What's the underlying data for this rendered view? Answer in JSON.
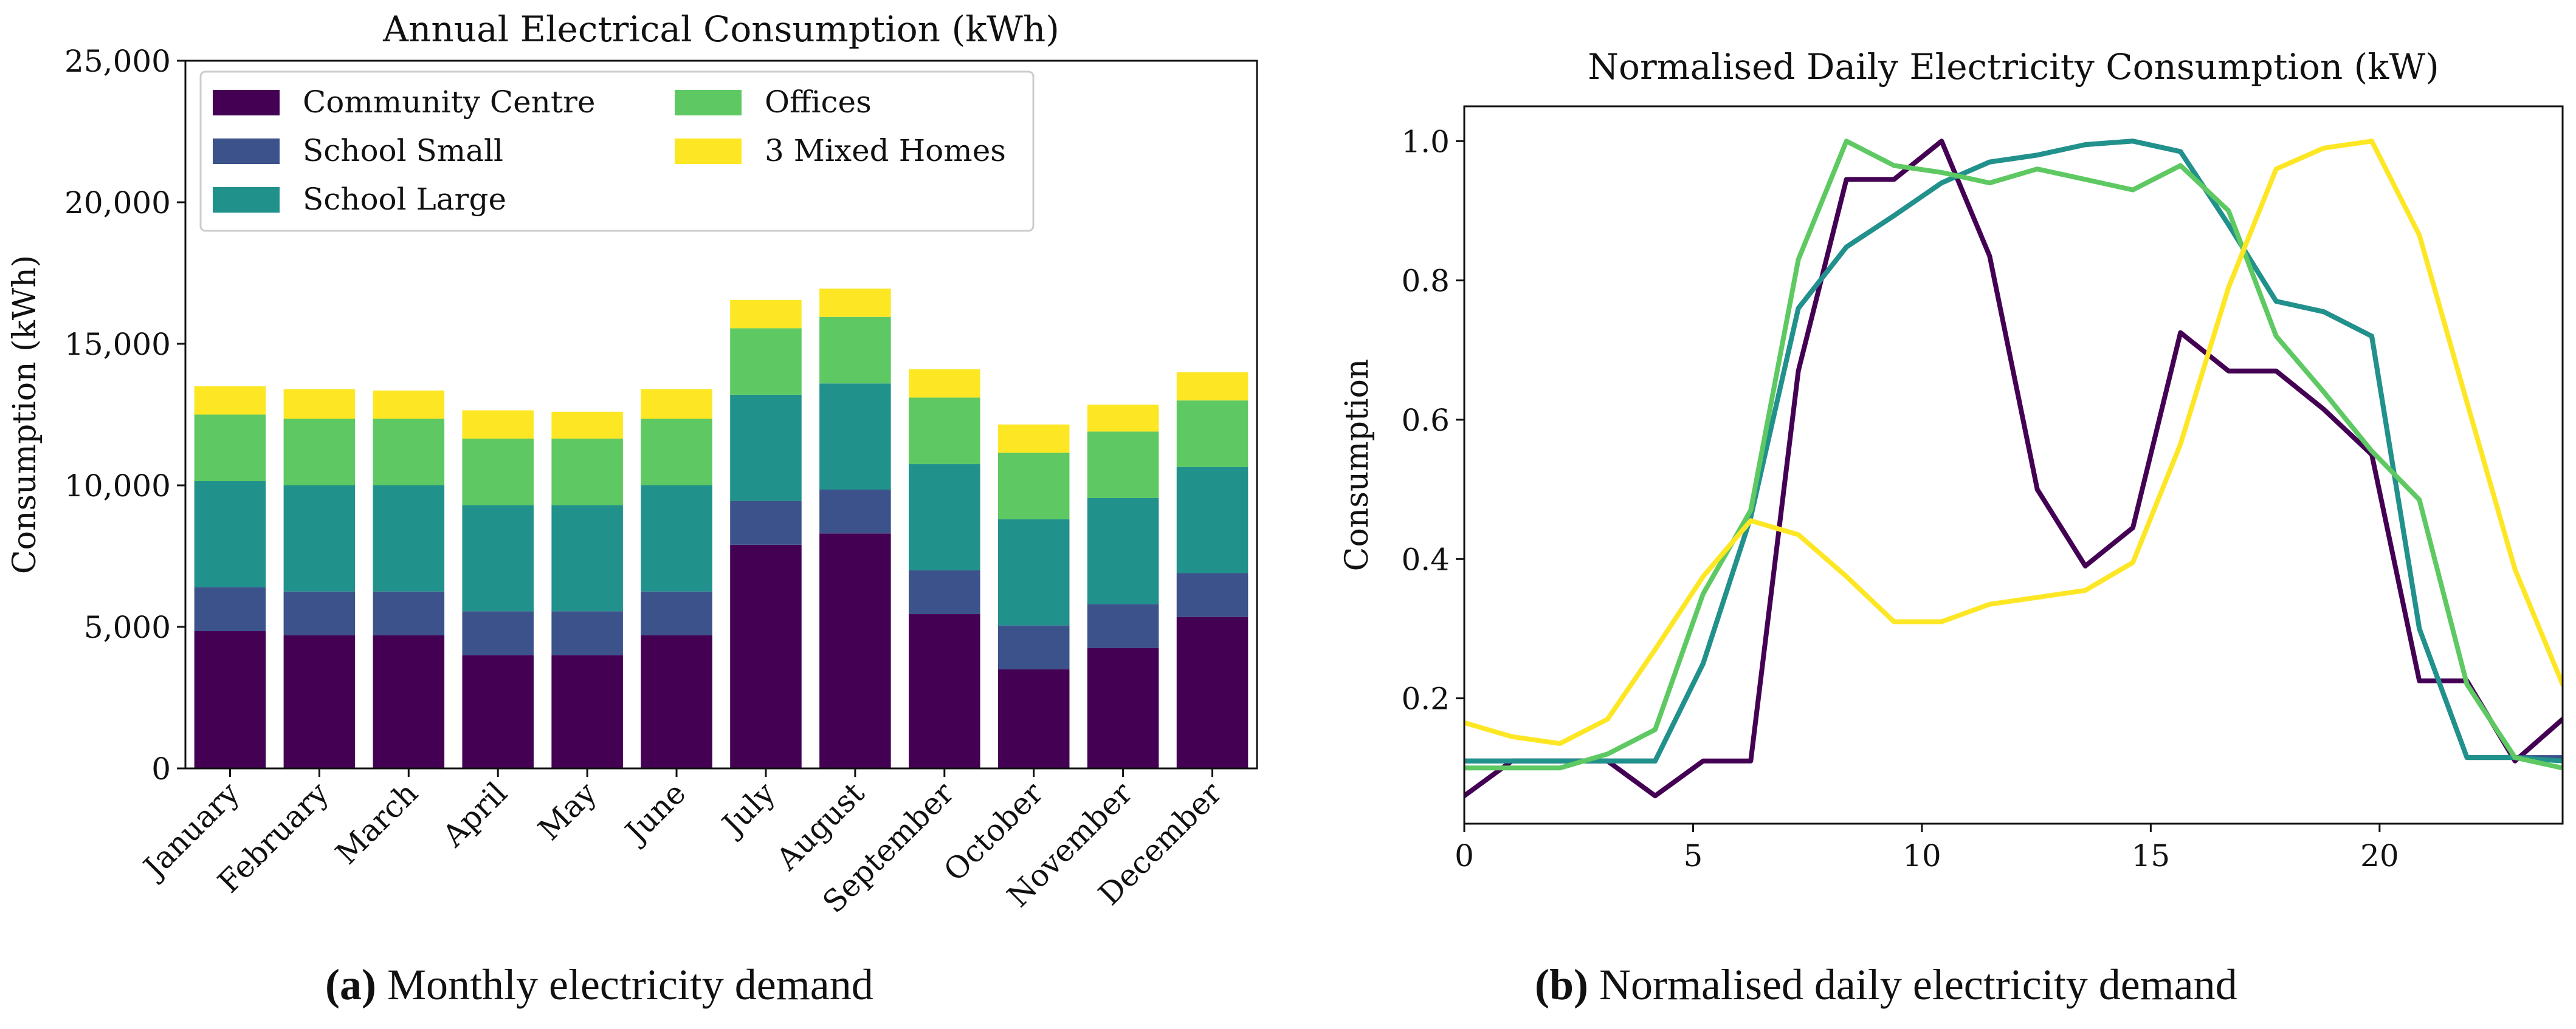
{
  "chart_data": [
    {
      "type": "bar",
      "stacked": true,
      "title": "Annual Electrical Consumption (kWh)",
      "xlabel": "",
      "ylabel": "Consumption (kWh)",
      "ylim": [
        0,
        25000
      ],
      "yticks": [
        0,
        5000,
        10000,
        15000,
        20000,
        25000
      ],
      "ytick_labels": [
        "0",
        "5,000",
        "10,000",
        "15,000",
        "20,000",
        "25,000"
      ],
      "legend_position": "top-left",
      "categories": [
        "January",
        "February",
        "March",
        "April",
        "May",
        "June",
        "July",
        "August",
        "September",
        "October",
        "November",
        "December"
      ],
      "series": [
        {
          "name": "Community Centre",
          "color": "#440154",
          "values": [
            4850,
            4700,
            4700,
            4000,
            4000,
            4700,
            7900,
            8300,
            5450,
            3500,
            4250,
            5350
          ]
        },
        {
          "name": "School Small",
          "color": "#3b528b",
          "values": [
            1550,
            1550,
            1550,
            1550,
            1550,
            1550,
            1550,
            1550,
            1550,
            1550,
            1550,
            1550
          ]
        },
        {
          "name": "School Large",
          "color": "#21918c",
          "values": [
            3750,
            3750,
            3750,
            3750,
            3750,
            3750,
            3750,
            3750,
            3750,
            3750,
            3750,
            3750
          ]
        },
        {
          "name": "Offices",
          "color": "#5ec962",
          "values": [
            2350,
            2350,
            2350,
            2350,
            2350,
            2350,
            2350,
            2350,
            2350,
            2350,
            2350,
            2350
          ]
        },
        {
          "name": "3 Mixed Homes",
          "color": "#fde725",
          "values": [
            1000,
            1050,
            1000,
            1000,
            950,
            1050,
            1000,
            1000,
            1000,
            1000,
            950,
            1000
          ]
        }
      ]
    },
    {
      "type": "line",
      "title": "Normalised Daily Electricity Consumption (kW)",
      "xlabel": "",
      "ylabel": "Consumption",
      "xlim": [
        0,
        24
      ],
      "ylim": [
        0.02,
        1.05
      ],
      "xticks": [
        0,
        5,
        10,
        15,
        20
      ],
      "yticks": [
        0.2,
        0.4,
        0.6,
        0.8,
        1.0
      ],
      "ytick_labels": [
        "0.2",
        "0.4",
        "0.6",
        "0.8",
        "1.0"
      ],
      "x": [
        0,
        1.04,
        2.09,
        3.13,
        4.17,
        5.22,
        6.26,
        7.3,
        8.35,
        9.39,
        10.43,
        11.48,
        12.52,
        13.57,
        14.61,
        15.65,
        16.7,
        17.74,
        18.78,
        19.83,
        20.87,
        21.91,
        22.96,
        24
      ],
      "series": [
        {
          "name": "Community Centre",
          "color": "#440154",
          "values": [
            0.06,
            0.11,
            0.11,
            0.11,
            0.06,
            0.11,
            0.11,
            0.67,
            0.945,
            0.945,
            1.0,
            0.835,
            0.5,
            0.39,
            0.445,
            0.725,
            0.67,
            0.67,
            0.615,
            0.55,
            0.225,
            0.225,
            0.11,
            0.17
          ]
        },
        {
          "name": "School Small",
          "color": "#3b528b",
          "values": [
            0.11,
            0.11,
            0.11,
            0.11,
            0.11,
            0.25,
            0.46,
            0.76,
            0.848,
            0.893,
            0.94,
            0.97,
            0.98,
            0.995,
            1.0,
            0.985,
            0.88,
            0.77,
            0.755,
            0.72,
            0.3,
            0.115,
            0.115,
            0.115
          ]
        },
        {
          "name": "School Large",
          "color": "#21918c",
          "values": [
            0.11,
            0.11,
            0.11,
            0.11,
            0.11,
            0.25,
            0.46,
            0.76,
            0.848,
            0.893,
            0.94,
            0.97,
            0.98,
            0.995,
            1.0,
            0.985,
            0.88,
            0.77,
            0.755,
            0.72,
            0.3,
            0.115,
            0.115,
            0.11
          ]
        },
        {
          "name": "Offices",
          "color": "#5ec962",
          "values": [
            0.1,
            0.1,
            0.1,
            0.12,
            0.155,
            0.35,
            0.47,
            0.83,
            1.0,
            0.965,
            0.955,
            0.94,
            0.96,
            0.945,
            0.93,
            0.965,
            0.9,
            0.72,
            0.64,
            0.555,
            0.485,
            0.22,
            0.115,
            0.1
          ]
        },
        {
          "name": "3 Mixed Homes",
          "color": "#fde725",
          "values": [
            0.165,
            0.145,
            0.135,
            0.17,
            0.27,
            0.375,
            0.455,
            0.435,
            0.375,
            0.31,
            0.31,
            0.335,
            0.345,
            0.355,
            0.395,
            0.565,
            0.79,
            0.96,
            0.99,
            1.0,
            0.865,
            0.625,
            0.385,
            0.22
          ]
        }
      ]
    }
  ],
  "captions": {
    "a_label": "(a)",
    "a_text": " Monthly electricity demand",
    "b_label": "(b)",
    "b_text": " Normalised daily electricity demand"
  }
}
